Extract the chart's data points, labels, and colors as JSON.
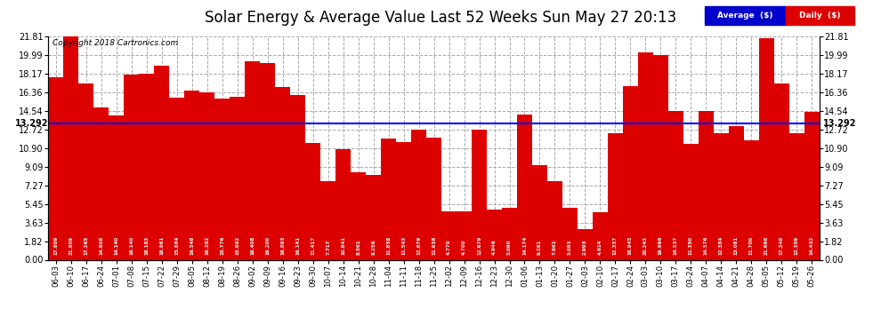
{
  "title": "Solar Energy & Average Value Last 52 Weeks Sun May 27 20:13",
  "copyright": "Copyright 2018 Cartronics.com",
  "average_value": 13.292,
  "average_label": "13.292",
  "bar_color": "#DD0000",
  "average_line_color": "#0000FF",
  "background_color": "#FFFFFF",
  "grid_color": "#AAAAAA",
  "yticks": [
    0.0,
    1.82,
    3.63,
    5.45,
    7.27,
    9.09,
    10.9,
    12.72,
    14.54,
    16.36,
    18.17,
    19.99,
    21.81
  ],
  "categories": [
    "06-03",
    "06-10",
    "06-17",
    "06-24",
    "07-01",
    "07-08",
    "07-15",
    "07-22",
    "07-29",
    "08-05",
    "08-12",
    "08-19",
    "08-26",
    "09-02",
    "09-09",
    "09-16",
    "09-23",
    "09-30",
    "10-07",
    "10-14",
    "10-21",
    "10-28",
    "11-04",
    "11-11",
    "11-18",
    "11-25",
    "12-02",
    "12-09",
    "12-16",
    "12-23",
    "12-30",
    "01-06",
    "01-13",
    "01-20",
    "01-27",
    "02-03",
    "02-10",
    "02-17",
    "02-24",
    "03-03",
    "03-10",
    "03-17",
    "03-24",
    "04-07",
    "04-14",
    "04-21",
    "04-28",
    "05-05",
    "05-12",
    "05-19",
    "05-26"
  ],
  "values": [
    17.809,
    21.809,
    17.265,
    14.908,
    14.14,
    18.14,
    18.163,
    18.961,
    15.884,
    16.548,
    16.392,
    15.776,
    15.892,
    19.408,
    19.2,
    16.893,
    16.141,
    11.417,
    7.717,
    10.841,
    8.561,
    8.256,
    11.858,
    11.543,
    12.679,
    11.938,
    4.77,
    4.7,
    12.679,
    4.946,
    5.09,
    14.174,
    9.261,
    7.661,
    5.093,
    2.993,
    4.614,
    12.337,
    16.945,
    20.243,
    19.996,
    14.537,
    11.35,
    14.576,
    12.384,
    13.081,
    11.7,
    21.666,
    17.248,
    12.359,
    14.432
  ],
  "legend_avg_color": "#0000CC",
  "legend_daily_color": "#DD0000",
  "ylim": [
    0,
    21.81
  ],
  "figsize": [
    9.9,
    3.75
  ],
  "dpi": 100
}
